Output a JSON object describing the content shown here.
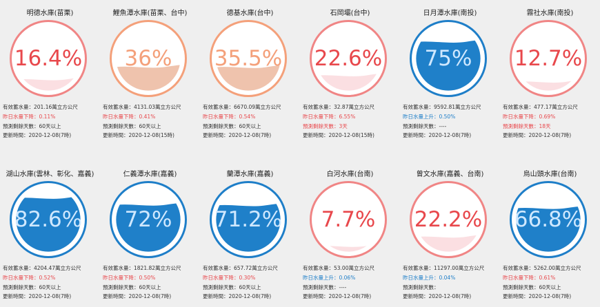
{
  "labels": {
    "storage_prefix": "有效蓄水量：",
    "storage_unit": "萬立方公尺",
    "change_down_prefix": "昨日水量下降：",
    "change_up_prefix": "昨日水量上升：",
    "days_prefix": "預測剩餘天數：",
    "updated_prefix": "更新時間："
  },
  "colors": {
    "red": "#e8484c",
    "orange": "#f4a07a",
    "blue": "#1e7ec8",
    "ring_red": "#f08585",
    "ring_orange": "#f4a07a",
    "ring_blue": "#1e7ec8"
  },
  "reservoirs": [
    {
      "name": "明德水庫(苗栗)",
      "percent_label": "16.4%",
      "level": 0.164,
      "status": "red",
      "storage": "201.16",
      "change_dir": "down",
      "change": "0.11%",
      "days": "60天以上",
      "updated": "2020-12-08(7時)"
    },
    {
      "name": "鯉魚潭水庫(苗栗、台中)",
      "percent_label": "36%",
      "level": 0.36,
      "status": "orange",
      "storage": "4131.03",
      "change_dir": "down",
      "change": "0.41%",
      "days": "60天以上",
      "updated": "2020-12-08(15時)"
    },
    {
      "name": "德基水庫(台中)",
      "percent_label": "35.5%",
      "level": 0.355,
      "status": "orange",
      "storage": "6670.09",
      "change_dir": "down",
      "change": "0.54%",
      "days": "60天以上",
      "updated": "2020-12-08(7時)"
    },
    {
      "name": "石岡壩(台中)",
      "percent_label": "22.6%",
      "level": 0.226,
      "status": "red",
      "storage": "32.87",
      "change_dir": "down",
      "change": "6.55%",
      "days": "3天",
      "days_warn": true,
      "updated": "2020-12-08(15時)"
    },
    {
      "name": "日月潭水庫(南投)",
      "percent_label": "75%",
      "level": 0.75,
      "status": "blue",
      "storage": "9592.81",
      "change_dir": "up",
      "change": "0.50%",
      "days": "----",
      "updated": "2020-12-08(7時)"
    },
    {
      "name": "霧社水庫(南投)",
      "percent_label": "12.7%",
      "level": 0.127,
      "status": "red",
      "storage": "477.17",
      "change_dir": "down",
      "change": "0.69%",
      "days": "18天",
      "days_warn": true,
      "updated": "2020-12-08(7時)"
    },
    {
      "name": "湖山水庫(雲林、彰化、嘉義)",
      "percent_label": "82.6%",
      "level": 0.826,
      "status": "blue",
      "storage": "4204.47",
      "change_dir": "down",
      "change": "0.52%",
      "days": "60天以上",
      "updated": "2020-12-08(7時)"
    },
    {
      "name": "仁義潭水庫(嘉義)",
      "percent_label": "72%",
      "level": 0.72,
      "status": "blue",
      "storage": "1821.82",
      "change_dir": "down",
      "change": "0.50%",
      "days": "60天以上",
      "updated": "2020-12-08(7時)"
    },
    {
      "name": "蘭潭水庫(嘉義)",
      "percent_label": "71.2%",
      "level": 0.712,
      "status": "blue",
      "storage": "657.72",
      "change_dir": "down",
      "change": "0.30%",
      "days": "60天以上",
      "updated": "2020-12-08(7時)"
    },
    {
      "name": "白河水庫(台南)",
      "percent_label": "7.7%",
      "level": 0.077,
      "status": "red",
      "storage": "53.00",
      "change_dir": "up",
      "change": "0.06%",
      "days": "----",
      "updated": "2020-12-08(7時)"
    },
    {
      "name": "曾文水庫(嘉義、台南)",
      "percent_label": "22.2%",
      "level": 0.222,
      "status": "red",
      "storage": "11297.00",
      "change_dir": "up",
      "change": "0.04%",
      "days": "",
      "updated": "2020-12-08(7時)"
    },
    {
      "name": "烏山頭水庫(台南)",
      "percent_label": "66.8%",
      "level": 0.668,
      "status": "blue",
      "storage": "5262.00",
      "change_dir": "down",
      "change": "0.61%",
      "days": "60天以上",
      "updated": "2020-12-08(7時)"
    }
  ]
}
